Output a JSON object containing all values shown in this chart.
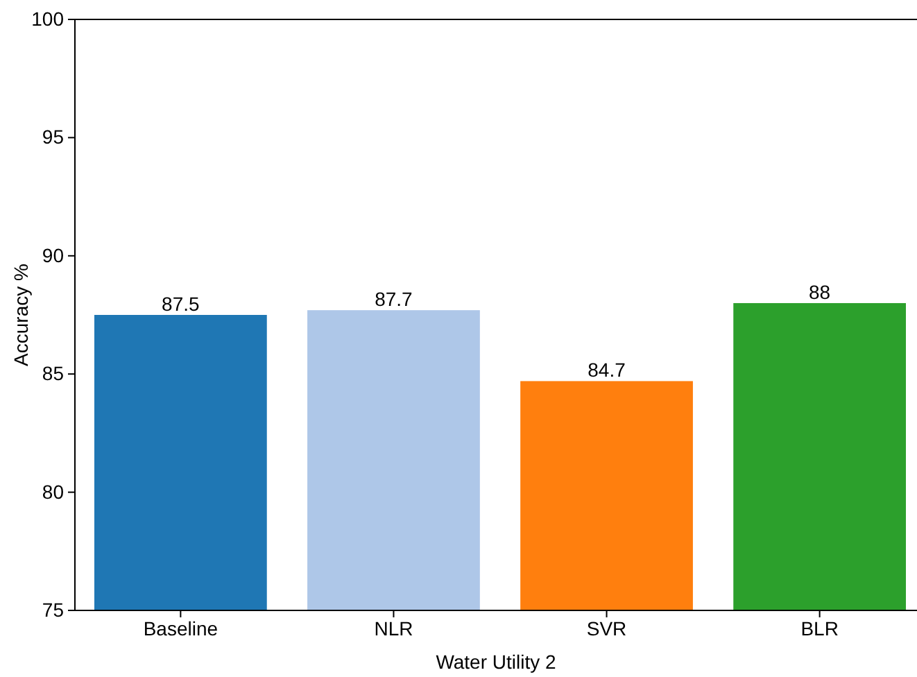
{
  "chart_data": {
    "type": "bar",
    "xlabel": "Water Utility 2",
    "ylabel": "Accuracy %",
    "categories": [
      "Baseline",
      "NLR",
      "SVR",
      "BLR"
    ],
    "values": [
      87.5,
      87.7,
      84.7,
      88
    ],
    "colors": [
      "#1f77b4",
      "#aec7e8",
      "#ff7f0e",
      "#2ca02c"
    ],
    "ylim": [
      75,
      100
    ],
    "yticks": [
      75,
      80,
      85,
      90,
      95,
      100
    ],
    "data_labels": true,
    "grid": false
  }
}
